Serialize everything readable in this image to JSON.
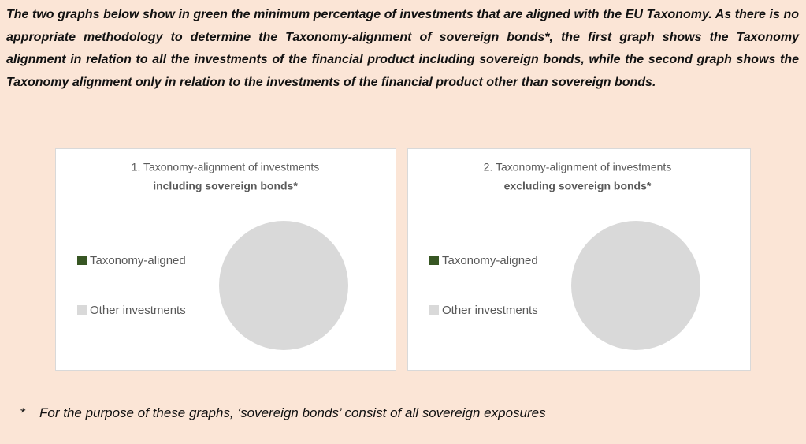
{
  "intro": "The two graphs below show in green the minimum percentage of investments that are aligned with the EU Taxonomy. As there is no appropriate methodology to determine the Taxonomy-alignment of sovereign bonds*, the first graph shows the Taxonomy alignment in relation to all the investments of the financial product including sovereign bonds, while the second graph shows the Taxonomy alignment only in relation to the investments of the financial product other than sovereign bonds.",
  "chart_data": [
    {
      "type": "pie",
      "title": "1. Taxonomy-alignment of investments",
      "subtitle": "including sovereign bonds*",
      "categories": [
        "Taxonomy-aligned",
        "Other investments"
      ],
      "values": [
        0,
        100
      ],
      "colors": [
        "#375623",
        "#d9d9d9"
      ],
      "legend": "left"
    },
    {
      "type": "pie",
      "title": "2. Taxonomy-alignment of investments",
      "subtitle": "excluding sovereign bonds*",
      "categories": [
        "Taxonomy-aligned",
        "Other investments"
      ],
      "values": [
        0,
        100
      ],
      "colors": [
        "#375623",
        "#d9d9d9"
      ],
      "legend": "left"
    }
  ],
  "footnote": {
    "marker": "*",
    "text": "For the purpose of these graphs, ‘sovereign bonds’ consist of  all sovereign exposures"
  }
}
